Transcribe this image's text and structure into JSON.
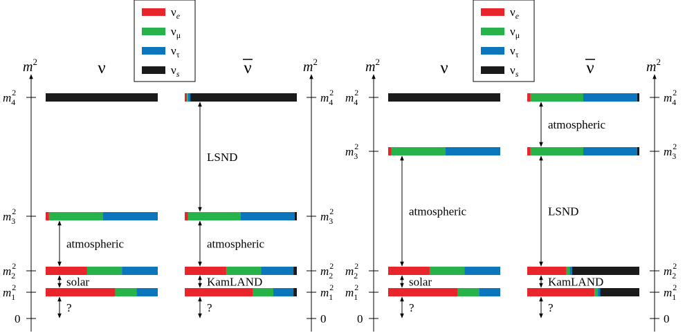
{
  "colors": {
    "nu_e": "#e8252a",
    "nu_mu": "#27b24a",
    "nu_tau": "#0c76bd",
    "nu_s": "#1a1a1a"
  },
  "legend": {
    "items": [
      {
        "key": "nu_e",
        "base": "ν",
        "sub": "e"
      },
      {
        "key": "nu_mu",
        "base": "ν",
        "sub": "μ"
      },
      {
        "key": "nu_tau",
        "base": "ν",
        "sub": "τ"
      },
      {
        "key": "nu_s",
        "base": "ν",
        "sub": "s"
      }
    ]
  },
  "axis": {
    "title": "m",
    "sup": "2",
    "zero": "0"
  },
  "column_titles": {
    "nu": "ν",
    "nubar": "ν"
  },
  "level_labels": {
    "m4": {
      "base": "m",
      "sub": "4",
      "sup": "2"
    },
    "m3": {
      "base": "m",
      "sub": "3",
      "sup": "2"
    },
    "m2": {
      "base": "m",
      "sub": "2",
      "sup": "2"
    },
    "m1": {
      "base": "m",
      "sub": "1",
      "sup": "2"
    }
  },
  "panels": [
    {
      "nu": {
        "m4": [
          0,
          0,
          0,
          1
        ],
        "m3": [
          0.03,
          0.48,
          0.49,
          0
        ],
        "m2": [
          0.37,
          0.31,
          0.32,
          0
        ],
        "m1": [
          0.62,
          0.19,
          0.19,
          0
        ]
      },
      "nubar": {
        "m4": [
          0.02,
          0.01,
          0.02,
          0.95
        ],
        "m3": [
          0.03,
          0.47,
          0.48,
          0.02
        ],
        "m2": [
          0.37,
          0.31,
          0.29,
          0.03
        ],
        "m1": [
          0.61,
          0.18,
          0.18,
          0.03
        ]
      },
      "arrows_nu": [
        {
          "from": "m3",
          "to": "m2",
          "label": "atmospheric"
        },
        {
          "from": "m2",
          "to": "m1",
          "label": "solar"
        },
        {
          "from": "m1",
          "to": "zero",
          "label": "?"
        }
      ],
      "arrows_nubar": [
        {
          "from": "m4",
          "to": "m3",
          "label": "LSND"
        },
        {
          "from": "m3",
          "to": "m2",
          "label": "atmospheric"
        },
        {
          "from": "m2",
          "to": "m1",
          "label": "KamLAND"
        },
        {
          "from": "m1",
          "to": "zero",
          "label": "?"
        }
      ]
    },
    {
      "nu": {
        "m4": [
          0,
          0,
          0,
          1
        ],
        "m3": [
          0.03,
          0.48,
          0.49,
          0
        ],
        "m2": [
          0.37,
          0.31,
          0.32,
          0
        ],
        "m1": [
          0.62,
          0.19,
          0.19,
          0
        ]
      },
      "nubar": {
        "m4": [
          0.03,
          0.47,
          0.48,
          0.02
        ],
        "m3": [
          0.03,
          0.47,
          0.48,
          0.02
        ],
        "m2": [
          0.35,
          0.03,
          0.02,
          0.6
        ],
        "m1": [
          0.6,
          0.03,
          0.02,
          0.35
        ]
      },
      "arrows_nu": [
        {
          "from": "m3",
          "to": "m2",
          "label": "atmospheric"
        },
        {
          "from": "m2",
          "to": "m1",
          "label": "solar"
        },
        {
          "from": "m1",
          "to": "zero",
          "label": "?"
        }
      ],
      "arrows_nubar": [
        {
          "from": "m4",
          "to": "m3",
          "label": "atmospheric"
        },
        {
          "from": "m3",
          "to": "m2",
          "label": "LSND"
        },
        {
          "from": "m2",
          "to": "m1",
          "label": "KamLAND"
        },
        {
          "from": "m1",
          "to": "zero",
          "label": "?"
        }
      ]
    }
  ]
}
